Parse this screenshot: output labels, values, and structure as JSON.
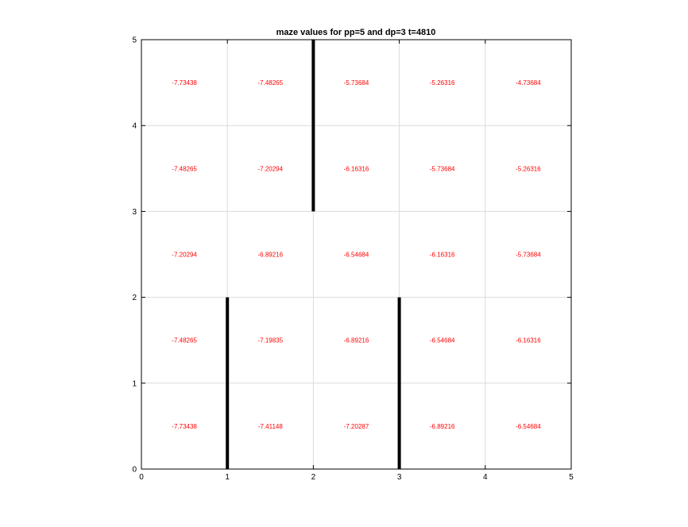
{
  "chart_data": {
    "type": "heatmap",
    "title": "maze values for pp=5 and dp=3 t=4810",
    "xlabel": "",
    "ylabel": "",
    "xlim": [
      0,
      5
    ],
    "ylim": [
      0,
      5
    ],
    "grid": true,
    "x_ticks": [
      "0",
      "1",
      "2",
      "3",
      "4",
      "5"
    ],
    "y_ticks": [
      "0",
      "1",
      "2",
      "3",
      "4",
      "5"
    ],
    "value_color": "#ff0000",
    "wall_color": "#000000",
    "cells": [
      {
        "x": 0.5,
        "y": 4.5,
        "value": "-7.73438"
      },
      {
        "x": 1.5,
        "y": 4.5,
        "value": "-7.48265"
      },
      {
        "x": 2.5,
        "y": 4.5,
        "value": "-5.73684"
      },
      {
        "x": 3.5,
        "y": 4.5,
        "value": "-5.26316"
      },
      {
        "x": 4.5,
        "y": 4.5,
        "value": "-4.73684"
      },
      {
        "x": 0.5,
        "y": 3.5,
        "value": "-7.48265"
      },
      {
        "x": 1.5,
        "y": 3.5,
        "value": "-7.20294"
      },
      {
        "x": 2.5,
        "y": 3.5,
        "value": "-6.16316"
      },
      {
        "x": 3.5,
        "y": 3.5,
        "value": "-5.73684"
      },
      {
        "x": 4.5,
        "y": 3.5,
        "value": "-5.26316"
      },
      {
        "x": 0.5,
        "y": 2.5,
        "value": "-7.20294"
      },
      {
        "x": 1.5,
        "y": 2.5,
        "value": "-6.89216"
      },
      {
        "x": 2.5,
        "y": 2.5,
        "value": "-6.54684"
      },
      {
        "x": 3.5,
        "y": 2.5,
        "value": "-6.16316"
      },
      {
        "x": 4.5,
        "y": 2.5,
        "value": "-5.73684"
      },
      {
        "x": 0.5,
        "y": 1.5,
        "value": "-7.48265"
      },
      {
        "x": 1.5,
        "y": 1.5,
        "value": "-7.19835"
      },
      {
        "x": 2.5,
        "y": 1.5,
        "value": "-6.89216"
      },
      {
        "x": 3.5,
        "y": 1.5,
        "value": "-6.54684"
      },
      {
        "x": 4.5,
        "y": 1.5,
        "value": "-6.16316"
      },
      {
        "x": 0.5,
        "y": 0.5,
        "value": "-7.73438"
      },
      {
        "x": 1.5,
        "y": 0.5,
        "value": "-7.41148"
      },
      {
        "x": 2.5,
        "y": 0.5,
        "value": "-7.20287"
      },
      {
        "x": 3.5,
        "y": 0.5,
        "value": "-6.89216"
      },
      {
        "x": 4.5,
        "y": 0.5,
        "value": "-6.54684"
      }
    ],
    "walls": [
      {
        "x1": 2,
        "y1": 3,
        "x2": 2,
        "y2": 5
      },
      {
        "x1": 1,
        "y1": 0,
        "x2": 1,
        "y2": 2
      },
      {
        "x1": 3,
        "y1": 0,
        "x2": 3,
        "y2": 2
      }
    ]
  }
}
